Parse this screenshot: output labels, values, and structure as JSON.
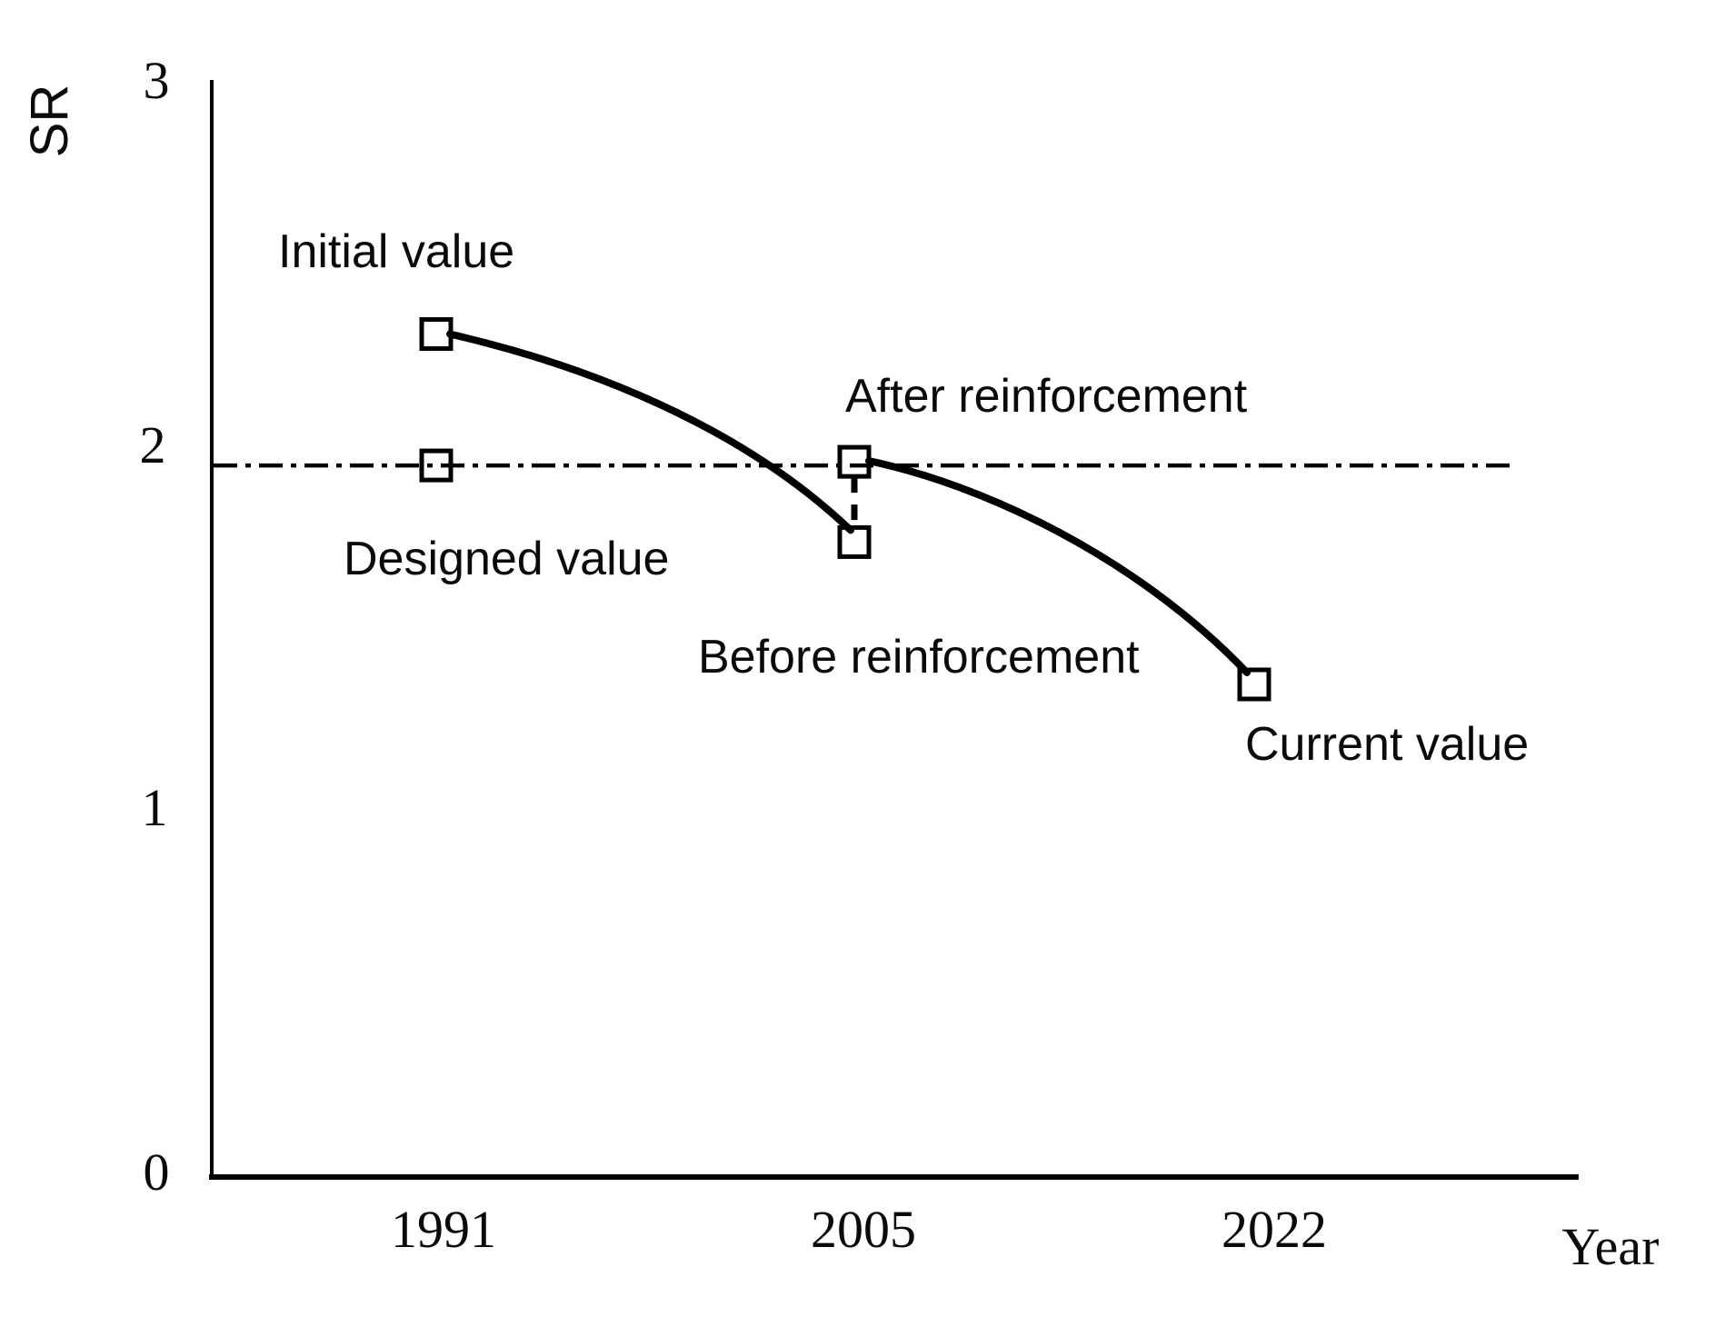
{
  "chart_data": {
    "type": "line",
    "title": "",
    "xlabel": "Year",
    "ylabel": "SR",
    "x_ticks": [
      "1991",
      "2005",
      "2022"
    ],
    "y_ticks": [
      "0",
      "1",
      "2",
      "3"
    ],
    "ylim": [
      0,
      3
    ],
    "grid": "off",
    "legend": "none",
    "marker_style": "open-square",
    "line_color": "#000000",
    "background_color": "#ffffff",
    "points": [
      {
        "label": "Initial value",
        "year": 1991,
        "sr": 2.31
      },
      {
        "label": "Designed value",
        "year": 1991,
        "sr": 1.95
      },
      {
        "label": "After reinforcement",
        "year": 2005,
        "sr": 1.96
      },
      {
        "label": "Before reinforcement",
        "year": 2005,
        "sr": 1.74
      },
      {
        "label": "Current value",
        "year": 2022,
        "sr": 1.35
      }
    ],
    "threshold_line": {
      "sr": 1.95,
      "style": "dash-dot",
      "meaning": "Designed value level"
    },
    "segments": [
      {
        "from": "Initial value",
        "to": "Before reinforcement",
        "style": "solid curve"
      },
      {
        "from": "Before reinforcement",
        "to": "After reinforcement",
        "style": "dashed vertical"
      },
      {
        "from": "After reinforcement",
        "to": "Current value",
        "style": "solid curve"
      }
    ]
  }
}
